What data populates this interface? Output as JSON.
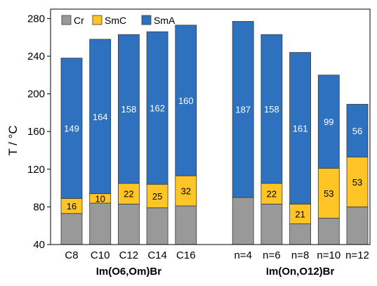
{
  "chart_data": {
    "type": "bar",
    "stacked": true,
    "ylabel": "T / °C",
    "ylim": [
      40,
      290
    ],
    "yticks": [
      40,
      80,
      120,
      160,
      200,
      240,
      280
    ],
    "grid": false,
    "legend_position": "top-left",
    "series": [
      {
        "name": "Cr",
        "color": "#999999"
      },
      {
        "name": "SmC",
        "color": "#ffc425"
      },
      {
        "name": "SmA",
        "color": "#2e71be"
      }
    ],
    "groups": [
      {
        "label": "Im(O6,Om)Br",
        "bars": [
          {
            "category": "C8",
            "cr": 73,
            "smc": 16,
            "sma": 149,
            "smc_label": "16",
            "sma_label": "149"
          },
          {
            "category": "C10",
            "cr": 84,
            "smc": 10,
            "sma": 164,
            "smc_label": "10",
            "sma_label": "164"
          },
          {
            "category": "C12",
            "cr": 83,
            "smc": 22,
            "sma": 158,
            "smc_label": "22",
            "sma_label": "158"
          },
          {
            "category": "C14",
            "cr": 79,
            "smc": 25,
            "sma": 162,
            "smc_label": "25",
            "sma_label": "162"
          },
          {
            "category": "C16",
            "cr": 81,
            "smc": 32,
            "sma": 160,
            "smc_label": "32",
            "sma_label": "160"
          }
        ]
      },
      {
        "label": "Im(On,O12)Br",
        "bars": [
          {
            "category": "n=4",
            "cr": 90,
            "smc": 0,
            "sma": 187,
            "smc_label": "",
            "sma_label": "187"
          },
          {
            "category": "n=6",
            "cr": 83,
            "smc": 22,
            "sma": 158,
            "smc_label": "22",
            "sma_label": "158"
          },
          {
            "category": "n=8",
            "cr": 62,
            "smc": 21,
            "sma": 161,
            "smc_label": "21",
            "sma_label": "161"
          },
          {
            "category": "n=10",
            "cr": 68,
            "smc": 53,
            "sma": 99,
            "smc_label": "53",
            "sma_label": "99"
          },
          {
            "category": "n=12",
            "cr": 80,
            "smc": 53,
            "sma": 56,
            "smc_label": "53",
            "sma_label": "56"
          }
        ]
      }
    ]
  }
}
